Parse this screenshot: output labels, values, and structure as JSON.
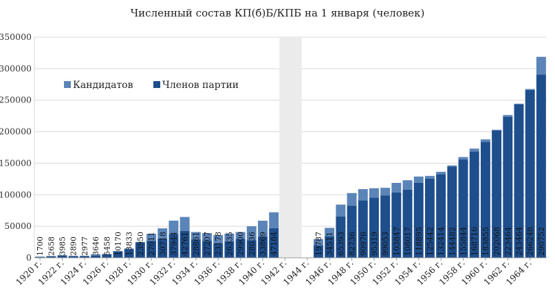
{
  "chart_data": {
    "type": "bar",
    "stacked": true,
    "title": "Численный состав КП(б)Б/КПБ на 1 января (человек)",
    "xlabel": "",
    "ylabel": "",
    "ylim": [
      0,
      350000
    ],
    "yticks": [
      0,
      50000,
      100000,
      150000,
      200000,
      250000,
      300000,
      350000
    ],
    "ytick_labels": [
      "0",
      "50000",
      "100000",
      "150000",
      "200000",
      "250000",
      "300000",
      "350000"
    ],
    "grid": true,
    "legend_position": "upper-left",
    "shaded_band": [
      "1942 г.",
      "1944 г."
    ],
    "categories": [
      "1920 г.",
      "1921 г.",
      "1922 г.",
      "1923 г.",
      "1924 г.",
      "1925 г.",
      "1926 г.",
      "1927 г.",
      "1928 г.",
      "1929 г.",
      "1930 г.",
      "1931 г.",
      "1932 г.",
      "1933 г.",
      "1934 г.",
      "1935 г.",
      "1936 г.",
      "1937 г.",
      "1938 г.",
      "1939 г.",
      "1940 г.",
      "1941 г.",
      "1942 г.",
      "1943 г.",
      "1944 г.",
      "1945 г.",
      "1946 г.",
      "1947 г.",
      "1948 г.",
      "1949 г.",
      "1950 г.",
      "1951 г.",
      "1952 г.",
      "1953 г.",
      "1954 г.",
      "1955 г.",
      "1956 г.",
      "1957 г.",
      "1958 г.",
      "1959 г.",
      "1960 г.",
      "1961 г.",
      "1962 г.",
      "1963 г.",
      "1964 г.",
      "1965 г."
    ],
    "tick_labels": [
      "1920 г.",
      "1922 г.",
      "1924 г.",
      "1926 г.",
      "1928 г.",
      "1930 г.",
      "1932 г.",
      "1934 г.",
      "1936 г.",
      "1938 г.",
      "1940 г.",
      "1942 г.",
      "1944 г.",
      "1946 г.",
      "1948 г.",
      "1950 г.",
      "1952 г.",
      "1954 г.",
      "1956 г.",
      "1958 г.",
      "1960 г.",
      "1962 г.",
      "1964 г."
    ],
    "series": [
      {
        "name": "Членов партии",
        "color": "#1f4e8c",
        "values": [
          1700,
          2658,
          3985,
          2890,
          2977,
          3646,
          5458,
          10170,
          13833,
          23950,
          27011,
          30718,
          37944,
          42761,
          28861,
          27207,
          23178,
          26335,
          29900,
          28036,
          33869,
          47184,
          null,
          null,
          null,
          19787,
          34511,
          65393,
          82736,
          90976,
          95319,
          99053,
          103847,
          108017,
          118895,
          125442,
          132414,
          144482,
          155844,
          168716,
          183855,
          202068,
          223464,
          243464,
          266248,
          290752
        ],
        "labels": [
          "1700",
          "2658",
          "3985",
          "2890",
          "2977",
          "3646",
          "5458",
          "10170",
          "13833",
          "23950",
          "27011",
          "30718",
          "37944",
          "42761",
          "28861",
          "27207",
          "23178",
          "26335",
          "29900",
          "28036",
          "33869",
          "47184",
          "",
          "",
          "",
          "19787",
          "34511",
          "65393",
          "82736",
          "90976",
          "95319",
          "99053",
          "103847",
          "108017",
          "118895",
          "125442",
          "132414",
          "144482",
          "155844",
          "168716",
          "183855",
          "202068",
          "223464",
          "243464",
          "266248",
          "290752"
        ]
      },
      {
        "name": "Кандидатов",
        "color": "#5b84b8",
        "values": [
          0,
          0,
          0,
          0,
          0,
          2000,
          500,
          700,
          1000,
          1400,
          11000,
          16000,
          21000,
          22000,
          12000,
          12000,
          13000,
          12000,
          11000,
          22000,
          25000,
          25000,
          null,
          null,
          null,
          10000,
          13000,
          19000,
          20000,
          18000,
          15000,
          12000,
          15000,
          15000,
          10000,
          4500,
          4000,
          2000,
          4000,
          4500,
          4000,
          1000,
          3000,
          1000,
          1500,
          28000
        ]
      }
    ]
  }
}
